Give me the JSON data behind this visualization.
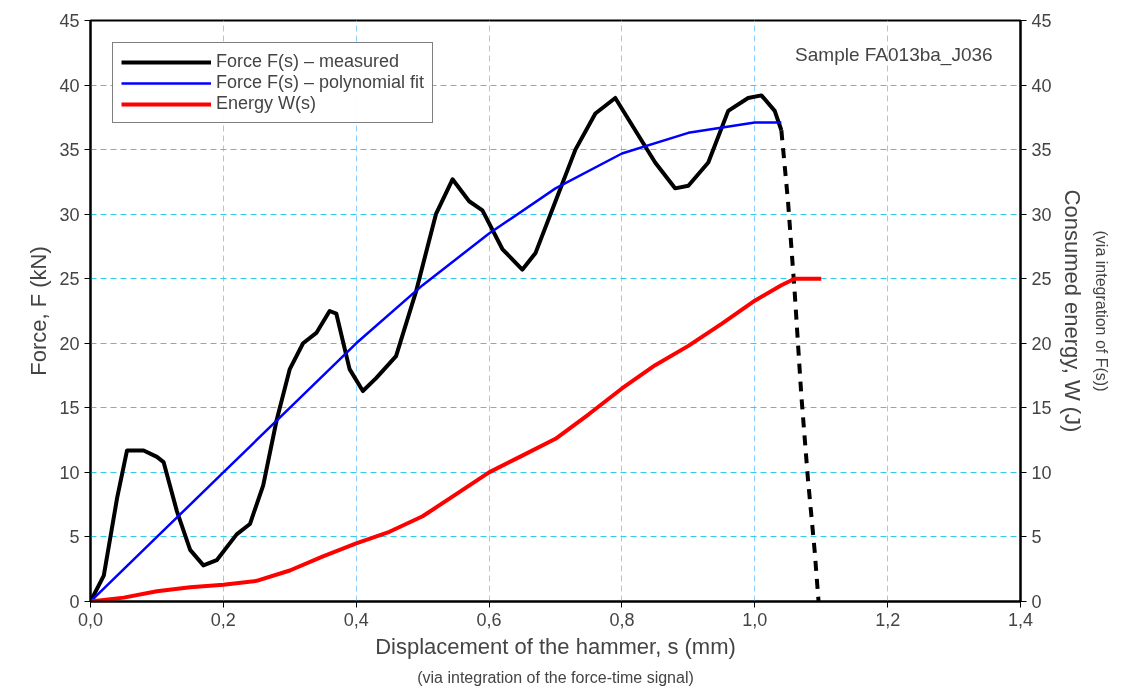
{
  "chart_data": {
    "type": "line",
    "xlabel": "Displacement of the hammer, s (mm)",
    "ylabel": "Force, F (kN)",
    "y2label": "Consumed energy, W (J)",
    "annotations": [
      "Sample FA013ba_J036",
      "(via integration of the force-time signal)",
      "(via integration of F(s))"
    ],
    "xlim": [
      0,
      1.4
    ],
    "xticks": [
      {
        "value": 0,
        "label": "0,0"
      },
      {
        "value": 0.2,
        "label": "0,2"
      },
      {
        "value": 0.4,
        "label": "0,4"
      },
      {
        "value": 0.6,
        "label": "0,6"
      },
      {
        "value": 0.8,
        "label": "0,8"
      },
      {
        "value": 1.0,
        "label": "1,0"
      },
      {
        "value": 1.2,
        "label": "1,2"
      },
      {
        "value": 1.4,
        "label": "1,4"
      }
    ],
    "ylim": [
      0,
      45
    ],
    "yticks": [
      0,
      5,
      10,
      15,
      20,
      25,
      30,
      35,
      40,
      45
    ],
    "y2lim": [
      0,
      45
    ],
    "y2ticks": [
      0,
      5,
      10,
      15,
      20,
      25,
      30,
      35,
      40,
      45
    ],
    "grid": true,
    "legend": "top left",
    "marker": "none",
    "series": [
      {
        "name": "Force F(s) – measured",
        "color": "#000000",
        "line_style": "solid",
        "x": [
          0,
          0.02,
          0.04,
          0.055,
          0.08,
          0.1,
          0.11,
          0.13,
          0.15,
          0.17,
          0.19,
          0.22,
          0.24,
          0.26,
          0.28,
          0.3,
          0.32,
          0.34,
          0.36,
          0.37,
          0.39,
          0.41,
          0.43,
          0.46,
          0.49,
          0.52,
          0.545,
          0.57,
          0.59,
          0.62,
          0.65,
          0.67,
          0.7,
          0.73,
          0.76,
          0.79,
          0.82,
          0.85,
          0.88,
          0.9,
          0.93,
          0.96,
          0.99,
          1.01,
          1.03,
          1.04
        ],
        "values": [
          0,
          2,
          8,
          11.7,
          11.7,
          11.2,
          10.8,
          7,
          4,
          2.8,
          3.2,
          5.2,
          6,
          9,
          14,
          18,
          20,
          20.8,
          22.5,
          22.3,
          18,
          16.3,
          17.3,
          19,
          24,
          30,
          32.7,
          31,
          30.3,
          27.3,
          25.7,
          27,
          31,
          35,
          37.8,
          39,
          36.5,
          34,
          32,
          32.2,
          34,
          38,
          39,
          39.2,
          38,
          36.5
        ]
      },
      {
        "color": "#000000",
        "line_style": "dashed",
        "x": [
          1.04,
          1.05,
          1.06,
          1.07,
          1.08,
          1.09,
          1.096
        ],
        "values": [
          36.5,
          31,
          24,
          16,
          9.5,
          4,
          0
        ]
      },
      {
        "name": "Force F(s) – polynomial fit",
        "color": "#0000ff",
        "line_style": "solid",
        "x": [
          0,
          0.1,
          0.2,
          0.3,
          0.4,
          0.5,
          0.6,
          0.7,
          0.8,
          0.9,
          1.0,
          1.04
        ],
        "values": [
          0,
          5,
          10,
          15,
          20,
          24.5,
          28.5,
          32,
          34.7,
          36.3,
          37.1,
          37.1
        ]
      },
      {
        "name": "Energy W(s)",
        "color": "#ff0000",
        "line_style": "solid",
        "x": [
          0,
          0.05,
          0.1,
          0.15,
          0.2,
          0.25,
          0.3,
          0.35,
          0.4,
          0.45,
          0.5,
          0.55,
          0.6,
          0.65,
          0.7,
          0.75,
          0.8,
          0.85,
          0.9,
          0.95,
          1.0,
          1.04,
          1.06,
          1.1
        ],
        "values": [
          0,
          0.3,
          0.8,
          1.1,
          1.3,
          1.6,
          2.4,
          3.5,
          4.5,
          5.4,
          6.6,
          8.3,
          10,
          11.3,
          12.6,
          14.5,
          16.5,
          18.3,
          19.8,
          21.5,
          23.3,
          24.5,
          25,
          25
        ]
      }
    ]
  }
}
